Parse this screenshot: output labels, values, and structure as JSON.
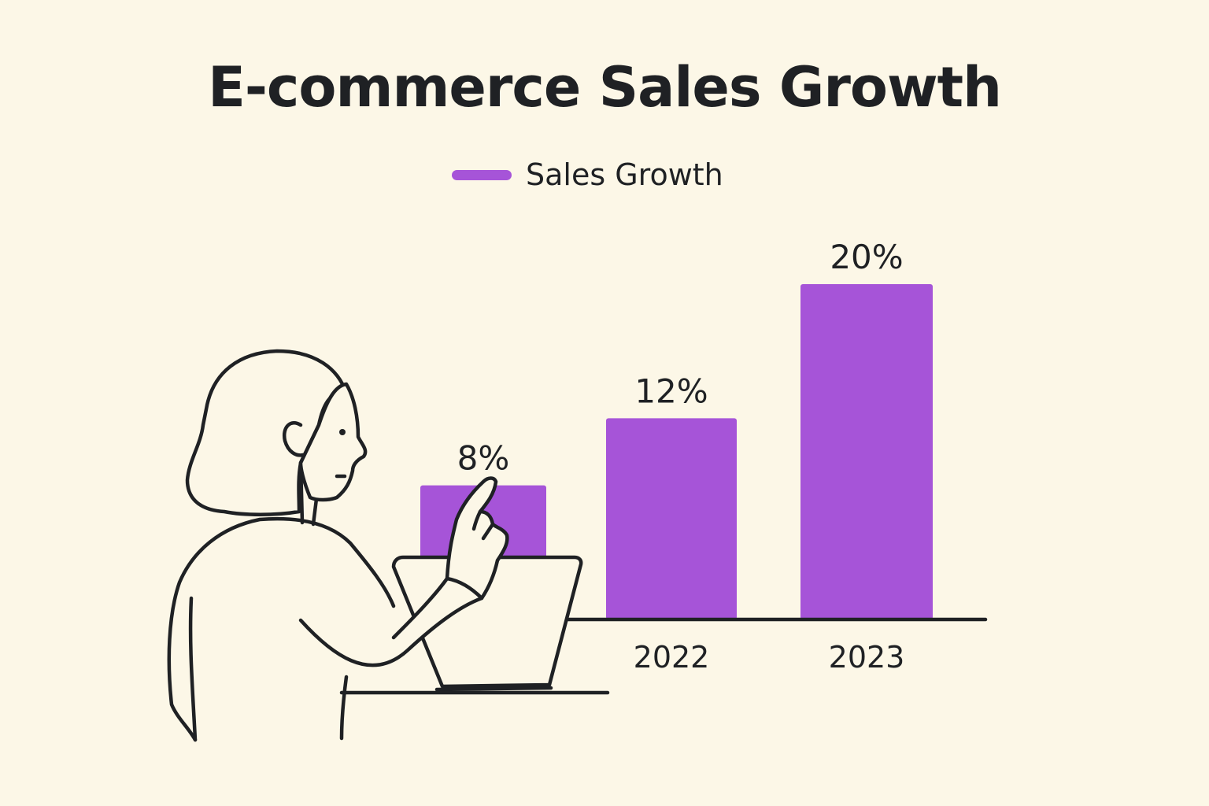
{
  "chart_data": {
    "type": "bar",
    "title": "E-commerce Sales Growth",
    "xlabel": "",
    "ylabel": "",
    "categories": [
      "",
      "2022",
      "2023"
    ],
    "series": [
      {
        "name": "Sales Growth",
        "values": [
          8,
          12,
          20
        ]
      }
    ],
    "data_labels": [
      "8%",
      "12%",
      "20%"
    ],
    "ylim": [
      0,
      22
    ],
    "grid": false,
    "legend_position": "top-center",
    "colors": {
      "bar": "#A654D8",
      "text": "#1F2124",
      "background": "#FCF7E7"
    }
  }
}
